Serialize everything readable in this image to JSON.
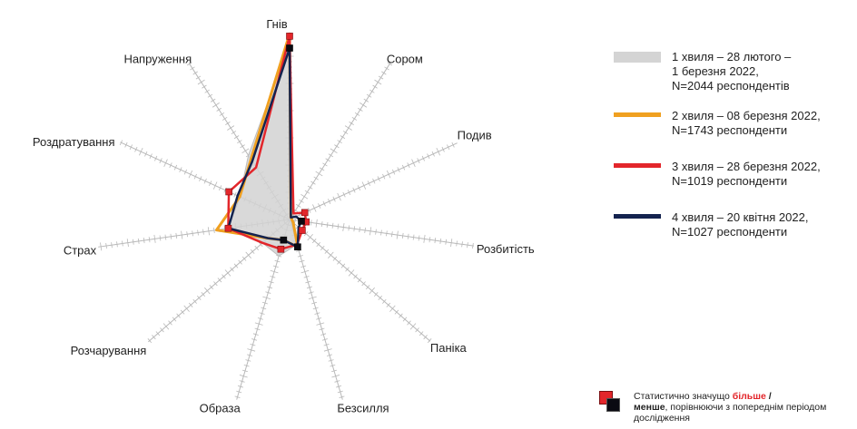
{
  "chart_data": {
    "type": "radar",
    "axes": [
      "Гнів",
      "Сором",
      "Подив",
      "Розбитість",
      "Паніка",
      "Безсилля",
      "Образа",
      "Розчарування",
      "Страх",
      "Роздратування",
      "Напруження"
    ],
    "series": [
      {
        "name": "1 хвиля – 28 лютого –\n1 березня 2022,\nN=2044 респондентів",
        "color": "#cfcfcf",
        "style": "area",
        "values": [
          74,
          1,
          1,
          1,
          1,
          11,
          16,
          15,
          26,
          23,
          32
        ]
      },
      {
        "name": "2 хвиля – 08 березня 2022,\nN=1743 респонденти",
        "color": "#f0a020",
        "style": "line",
        "values": [
          78,
          1,
          1,
          1,
          2,
          12,
          9,
          12,
          31,
          23,
          30
        ]
      },
      {
        "name": "3 хвиля – 28 березня 2022,\nN=1019 респонденти",
        "color": "#e3262b",
        "style": "line",
        "values": [
          77,
          3,
          7,
          7,
          7,
          11,
          13,
          15,
          26,
          28,
          26
        ]
      },
      {
        "name": "4 хвиля – 20 квітня 2022,\nN=1027 респонденти",
        "color": "#14234f",
        "style": "line",
        "values": [
          72,
          1,
          3,
          5,
          5,
          12,
          9,
          12,
          26,
          24,
          29
        ]
      }
    ],
    "markers": [
      {
        "series": 2,
        "axis": 0,
        "dir": "more"
      },
      {
        "series": 3,
        "axis": 0,
        "dir": "less"
      },
      {
        "series": 2,
        "axis": 2,
        "dir": "more"
      },
      {
        "series": 2,
        "axis": 3,
        "dir": "more"
      },
      {
        "series": 3,
        "axis": 3,
        "dir": "less"
      },
      {
        "series": 2,
        "axis": 4,
        "dir": "more"
      },
      {
        "series": 3,
        "axis": 5,
        "dir": "less"
      },
      {
        "series": 2,
        "axis": 6,
        "dir": "more"
      },
      {
        "series": 2,
        "axis": 8,
        "dir": "more"
      },
      {
        "series": 2,
        "axis": 9,
        "dir": "more"
      },
      {
        "series": 3,
        "axis": 6,
        "dir": "less"
      }
    ],
    "rmax": 80,
    "legend_position": "right",
    "colors": {
      "more": "#e3262b",
      "less": "#0a0a12",
      "axis": "#b8b8b8"
    }
  },
  "note": {
    "prefix": "Статистично значущо ",
    "more": "більше",
    "slash": " /",
    "less": "менше",
    "suffix": ", порівнюючи з попереднім періодом дослідження"
  }
}
